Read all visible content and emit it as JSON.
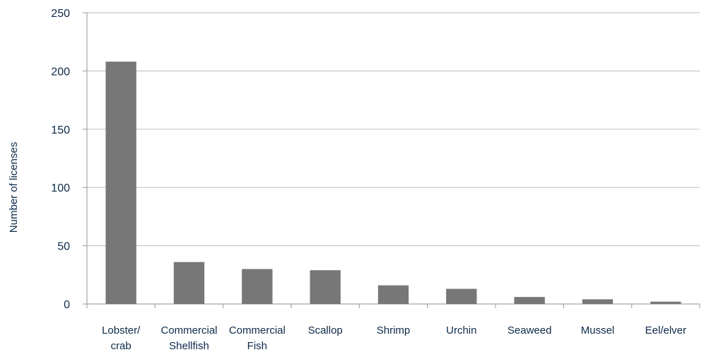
{
  "chart_data": {
    "type": "bar",
    "categories": [
      [
        "Lobster/",
        "crab"
      ],
      [
        "Commercial",
        "Shellfish"
      ],
      [
        "Commercial",
        "Fish"
      ],
      [
        "Scallop"
      ],
      [
        "Shrimp"
      ],
      [
        "Urchin"
      ],
      [
        "Seaweed"
      ],
      [
        "Mussel"
      ],
      [
        "Eel/elver"
      ]
    ],
    "values": [
      208,
      36,
      30,
      29,
      16,
      13,
      6,
      4,
      2
    ],
    "ylabel": "Number of licenses",
    "xlabel": "",
    "ylim": [
      0,
      250
    ],
    "yticks": [
      0,
      50,
      100,
      150,
      200,
      250
    ],
    "grid": true,
    "legend": "none",
    "colors": {
      "bar": "#777777",
      "grid": "#c8c8c8",
      "axis": "#a6a6a6",
      "text": "#0d2a4a"
    }
  }
}
